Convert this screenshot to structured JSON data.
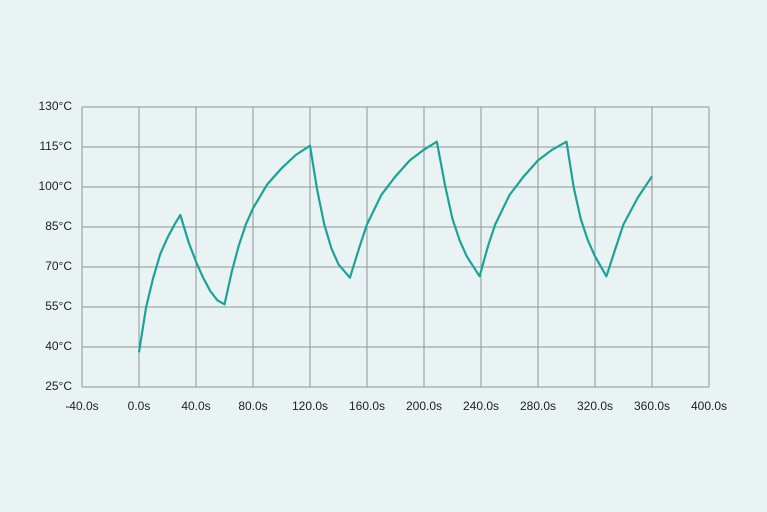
{
  "chart_data": {
    "type": "line",
    "x": [
      0,
      5,
      10,
      15,
      20,
      25,
      29,
      35,
      40,
      45,
      50,
      55,
      60,
      65,
      70,
      75,
      80,
      90,
      100,
      110,
      120,
      125,
      130,
      135,
      140,
      148,
      155,
      160,
      170,
      180,
      190,
      200,
      209,
      215,
      220,
      225,
      230,
      239,
      245,
      250,
      260,
      270,
      280,
      290,
      300,
      305,
      310,
      315,
      320,
      328,
      335,
      340,
      350,
      360
    ],
    "series": [
      {
        "color": "#1aa39a",
        "values": [
          38,
          55,
          66,
          75,
          81,
          86,
          89.5,
          79,
          72,
          66,
          61,
          57.5,
          56,
          68,
          78,
          86,
          92,
          101,
          107,
          112,
          115.5,
          99,
          86,
          77,
          71,
          66,
          78,
          86,
          97,
          104,
          110,
          114,
          117,
          100,
          88,
          80,
          74,
          66.5,
          78,
          86,
          97,
          104,
          110,
          114,
          117,
          100,
          88,
          80,
          74,
          66.5,
          78,
          86,
          96,
          104
        ]
      }
    ],
    "xlim": [
      -40,
      400
    ],
    "xticks": [
      {
        "value": -40,
        "label": "-40.0s"
      },
      {
        "value": 0,
        "label": "0.0s"
      },
      {
        "value": 40,
        "label": "40.0s"
      },
      {
        "value": 80,
        "label": "80.0s"
      },
      {
        "value": 120,
        "label": "120.0s"
      },
      {
        "value": 160,
        "label": "160.0s"
      },
      {
        "value": 200,
        "label": "200.0s"
      },
      {
        "value": 240,
        "label": "240.0s"
      },
      {
        "value": 280,
        "label": "280.0s"
      },
      {
        "value": 320,
        "label": "320.0s"
      },
      {
        "value": 360,
        "label": "360.0s"
      },
      {
        "value": 400,
        "label": "400.0s"
      }
    ],
    "ylim": [
      25,
      130
    ],
    "yticks": [
      {
        "value": 25,
        "label": "25°C"
      },
      {
        "value": 40,
        "label": "40°C"
      },
      {
        "value": 55,
        "label": "55°C"
      },
      {
        "value": 70,
        "label": "70°C"
      },
      {
        "value": 85,
        "label": "85°C"
      },
      {
        "value": 100,
        "label": "100°C"
      },
      {
        "value": 115,
        "label": "115°C"
      },
      {
        "value": 130,
        "label": "130°C"
      }
    ],
    "grid": true
  }
}
